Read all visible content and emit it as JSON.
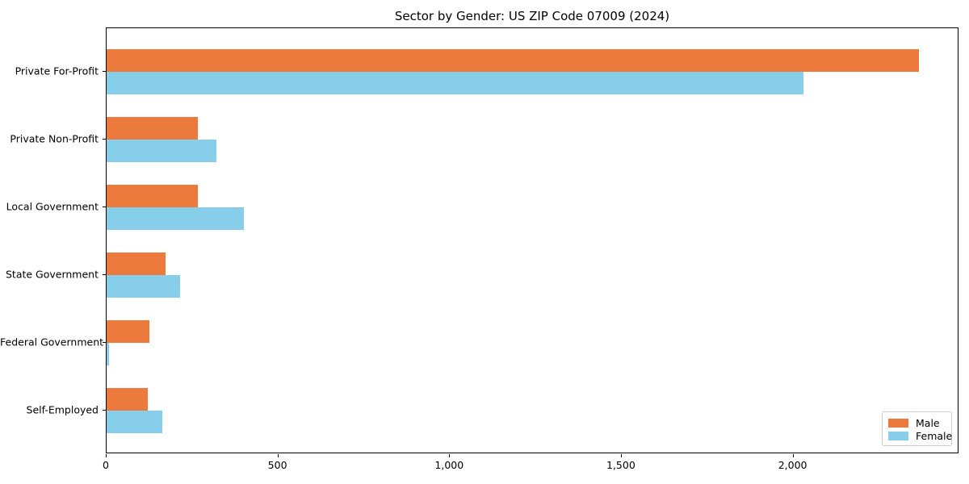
{
  "chart_data": {
    "type": "bar",
    "orientation": "horizontal",
    "title": "Sector by Gender: US ZIP Code 07009 (2024)",
    "xlabel": "",
    "ylabel": "",
    "categories": [
      "Private For-Profit",
      "Private Non-Profit",
      "Local Government",
      "State Government",
      "Federal Government",
      "Self-Employed"
    ],
    "series": [
      {
        "name": "Male",
        "color": "#EB7A3C",
        "values": [
          2365,
          265,
          265,
          172,
          125,
          120
        ]
      },
      {
        "name": "Female",
        "color": "#87CEEB",
        "values": [
          2030,
          320,
          400,
          215,
          8,
          162
        ]
      }
    ],
    "xlim": [
      0,
      2483
    ],
    "x_ticks": [
      {
        "value": 0,
        "label": "0"
      },
      {
        "value": 500,
        "label": "500"
      },
      {
        "value": 1000,
        "label": "1,000"
      },
      {
        "value": 1500,
        "label": "1,500"
      },
      {
        "value": 2000,
        "label": "2,000"
      }
    ],
    "grid": false,
    "legend_position": "lower right"
  }
}
